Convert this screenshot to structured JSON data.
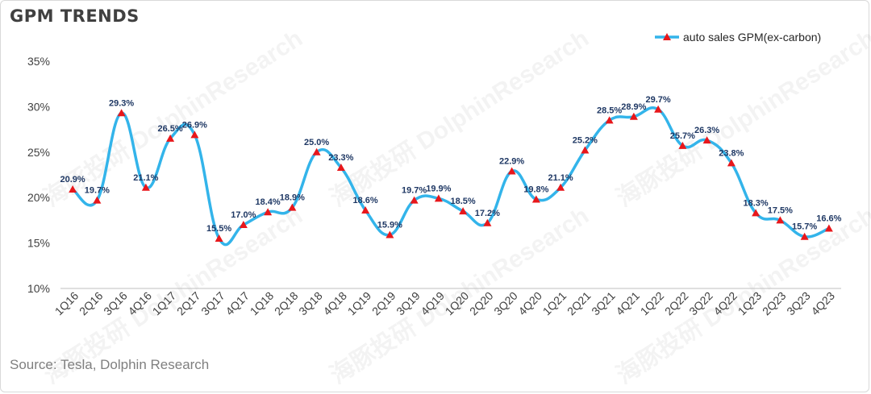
{
  "title": "GPM TRENDS",
  "source": "Source: Tesla, Dolphin Research",
  "watermark": {
    "cn": "海豚投研",
    "en": "DolphinResearch"
  },
  "colors": {
    "line": "#33b4ea",
    "marker": "#e8171b",
    "label": "#1f3864",
    "axis": "#404040"
  },
  "chart_data": {
    "type": "line",
    "title": "GPM TRENDS",
    "xlabel": "",
    "ylabel": "",
    "ylim": [
      10,
      35
    ],
    "yticks": [
      "10%",
      "15%",
      "20%",
      "25%",
      "30%",
      "35%"
    ],
    "grid": false,
    "legend_position": "top-right",
    "categories": [
      "1Q16",
      "2Q16",
      "3Q16",
      "4Q16",
      "1Q17",
      "2Q17",
      "3Q17",
      "4Q17",
      "1Q18",
      "2Q18",
      "3Q18",
      "4Q18",
      "1Q19",
      "2Q19",
      "3Q19",
      "4Q19",
      "1Q20",
      "2Q20",
      "3Q20",
      "4Q20",
      "1Q21",
      "2Q21",
      "3Q21",
      "4Q21",
      "1Q22",
      "2Q22",
      "3Q22",
      "4Q22",
      "1Q23",
      "2Q23",
      "3Q23",
      "4Q23"
    ],
    "series": [
      {
        "name": "auto sales GPM(ex-carbon)",
        "values": [
          20.9,
          19.7,
          29.3,
          21.1,
          26.5,
          26.9,
          15.5,
          17.0,
          18.4,
          18.9,
          25.0,
          23.3,
          18.6,
          15.9,
          19.7,
          19.9,
          18.5,
          17.2,
          22.9,
          19.8,
          21.1,
          25.2,
          28.5,
          28.9,
          29.7,
          25.7,
          26.3,
          23.8,
          18.3,
          17.5,
          15.7,
          16.6
        ],
        "labels": [
          "20.9%",
          "19.7%",
          "29.3%",
          "21.1%",
          "26.5%",
          "26.9%",
          "15.5%",
          "17.0%",
          "18.4%",
          "18.9%",
          "25.0%",
          "23.3%",
          "18.6%",
          "15.9%",
          "19.7%",
          "19.9%",
          "18.5%",
          "17.2%",
          "22.9%",
          "19.8%",
          "21.1%",
          "25.2%",
          "28.5%",
          "28.9%",
          "29.7%",
          "25.7%",
          "26.3%",
          "23.8%",
          "18.3%",
          "17.5%",
          "15.7%",
          "16.6%"
        ]
      }
    ]
  }
}
